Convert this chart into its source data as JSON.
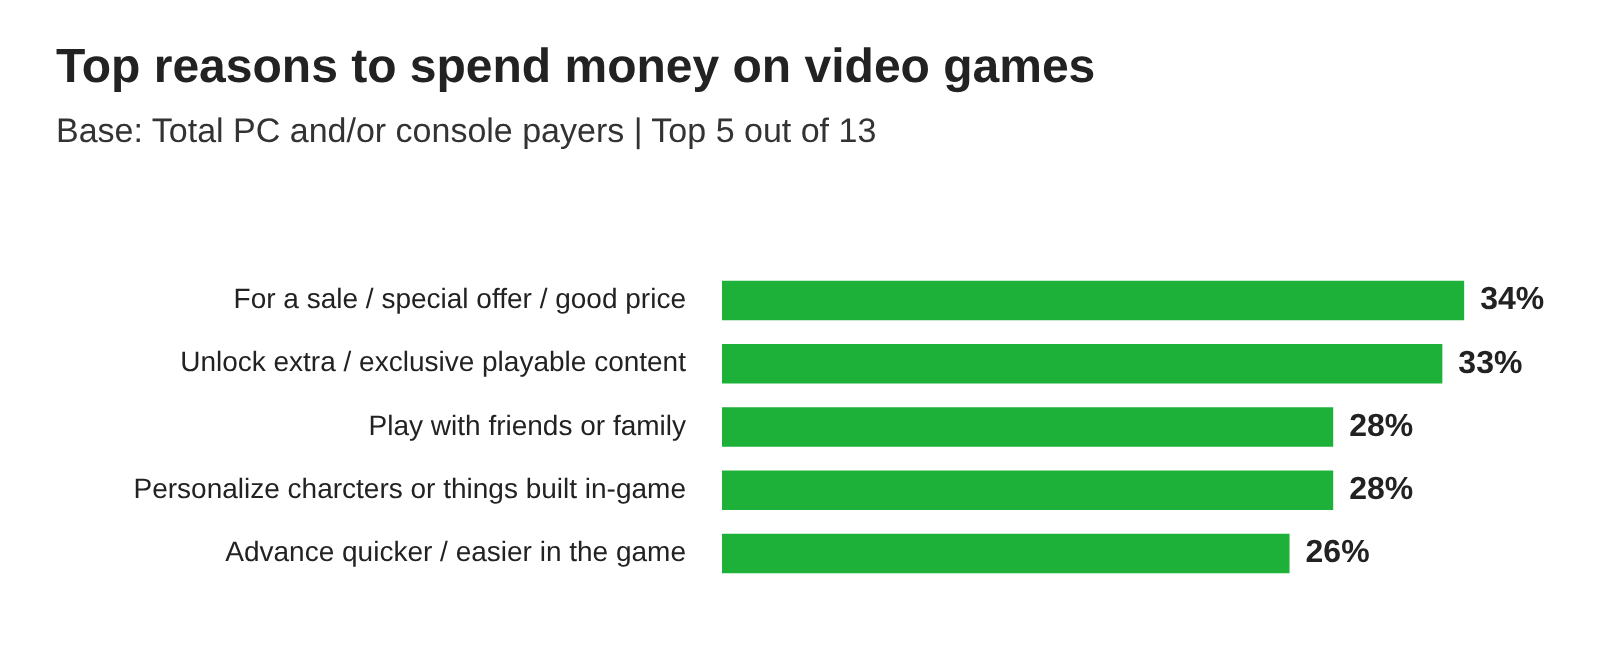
{
  "chart_data": {
    "type": "bar",
    "orientation": "horizontal",
    "title": "Top reasons to spend money on video games",
    "subtitle": "Base: Total PC and/or console payers | Top 5 out of 13",
    "categories": [
      "For a sale / special offer / good price",
      "Unlock extra / exclusive playable content",
      "Play with friends or family",
      "Personalize charcters or things built in-game",
      "Advance quicker / easier in the game"
    ],
    "values": [
      34,
      33,
      28,
      28,
      26
    ],
    "value_labels": [
      "34%",
      "33%",
      "28%",
      "28%",
      "26%"
    ],
    "color": "#1db13a",
    "tick_labels": "y"
  }
}
